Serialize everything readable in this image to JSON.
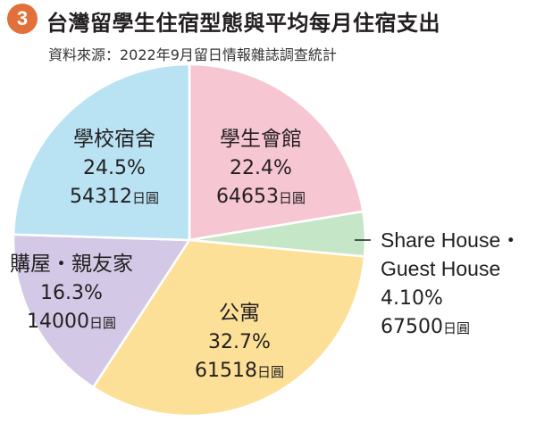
{
  "header": {
    "badge": "3",
    "title": "台灣留學生住宿型態與平均每月住宿支出",
    "source": "資料來源：2022年9月留日情報雜誌調查統計"
  },
  "chart_data": {
    "type": "pie",
    "start_angle_deg": 0,
    "direction": "clockwise",
    "unit": "日圓",
    "slices": [
      {
        "label": "學生會館",
        "percent_text": "22.4%",
        "value": 22.4,
        "cost": "64653",
        "color": "#f6c6d3"
      },
      {
        "label": "Share House・Guest House",
        "label_lines": [
          "Share House・",
          "Guest House"
        ],
        "percent_text": "4.10%",
        "value": 4.1,
        "cost": "67500",
        "color": "#c6e6c8"
      },
      {
        "label": "公寓",
        "percent_text": "32.7%",
        "value": 32.7,
        "cost": "61518",
        "color": "#fde098"
      },
      {
        "label": "購屋・親友家",
        "percent_text": "16.3%",
        "value": 16.3,
        "cost": "14000",
        "color": "#d3c9e6"
      },
      {
        "label": "學校宿舍",
        "percent_text": "24.5%",
        "value": 24.5,
        "cost": "54312",
        "color": "#b9e3f3"
      }
    ]
  }
}
